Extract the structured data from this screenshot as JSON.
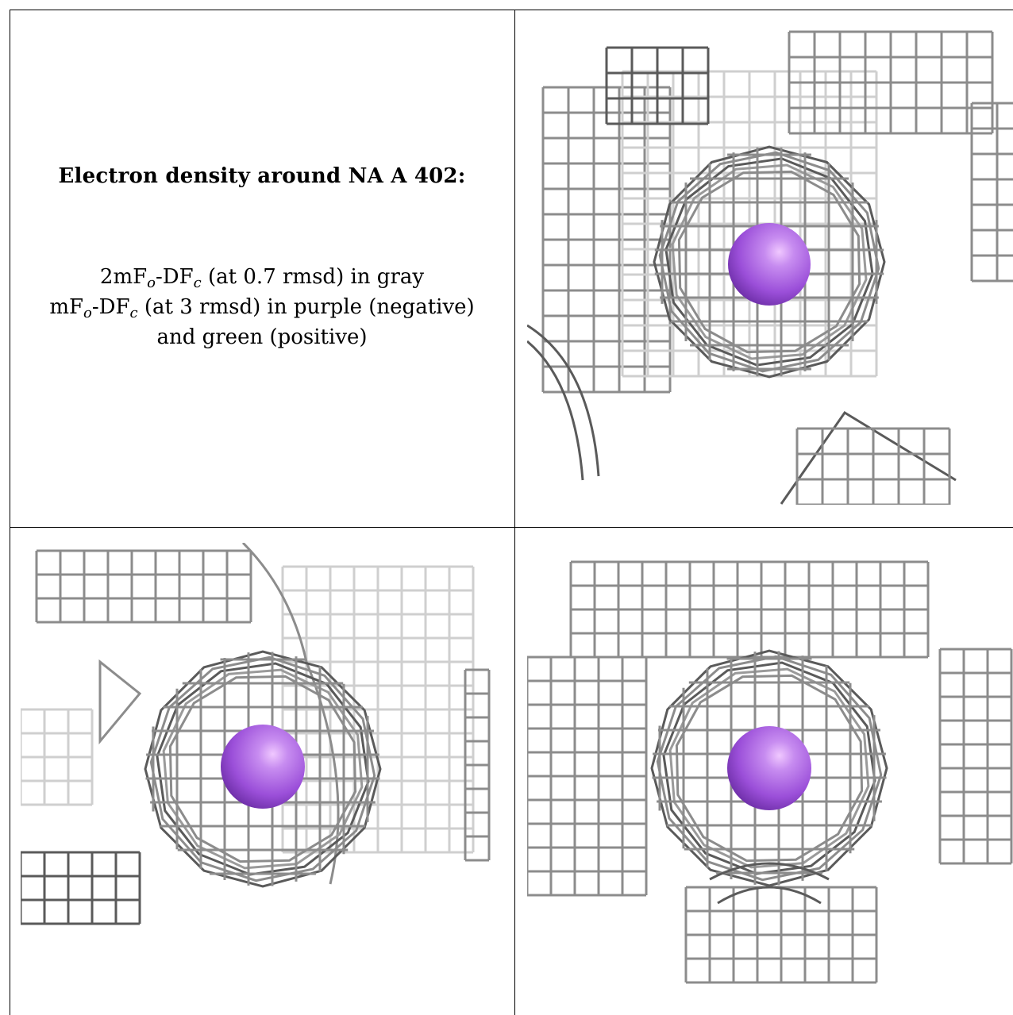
{
  "caption": {
    "title": "Electron density around NA A 402:",
    "line1_prefix": "2mF",
    "line1_sub1": "o",
    "line1_mid": "-DF",
    "line1_sub2": "c",
    "line1_suffix": " (at 0.7 rmsd) in gray",
    "line2_prefix": "mF",
    "line2_sub1": "o",
    "line2_mid": "-DF",
    "line2_sub2": "c",
    "line2_suffix": " (at 3 rmsd) in purple (negative)",
    "line3": "and green (positive)"
  },
  "colors": {
    "mesh_dark": "#5a5a5a",
    "mesh_mid": "#8c8c8c",
    "mesh_light": "#cfcfcf",
    "atom": "#9b4fd9",
    "atom_highlight": "#f0c8ff",
    "border": "#000000"
  },
  "panels": [
    {
      "name": "view-top-right"
    },
    {
      "name": "view-bottom-left"
    },
    {
      "name": "view-bottom-right"
    }
  ]
}
